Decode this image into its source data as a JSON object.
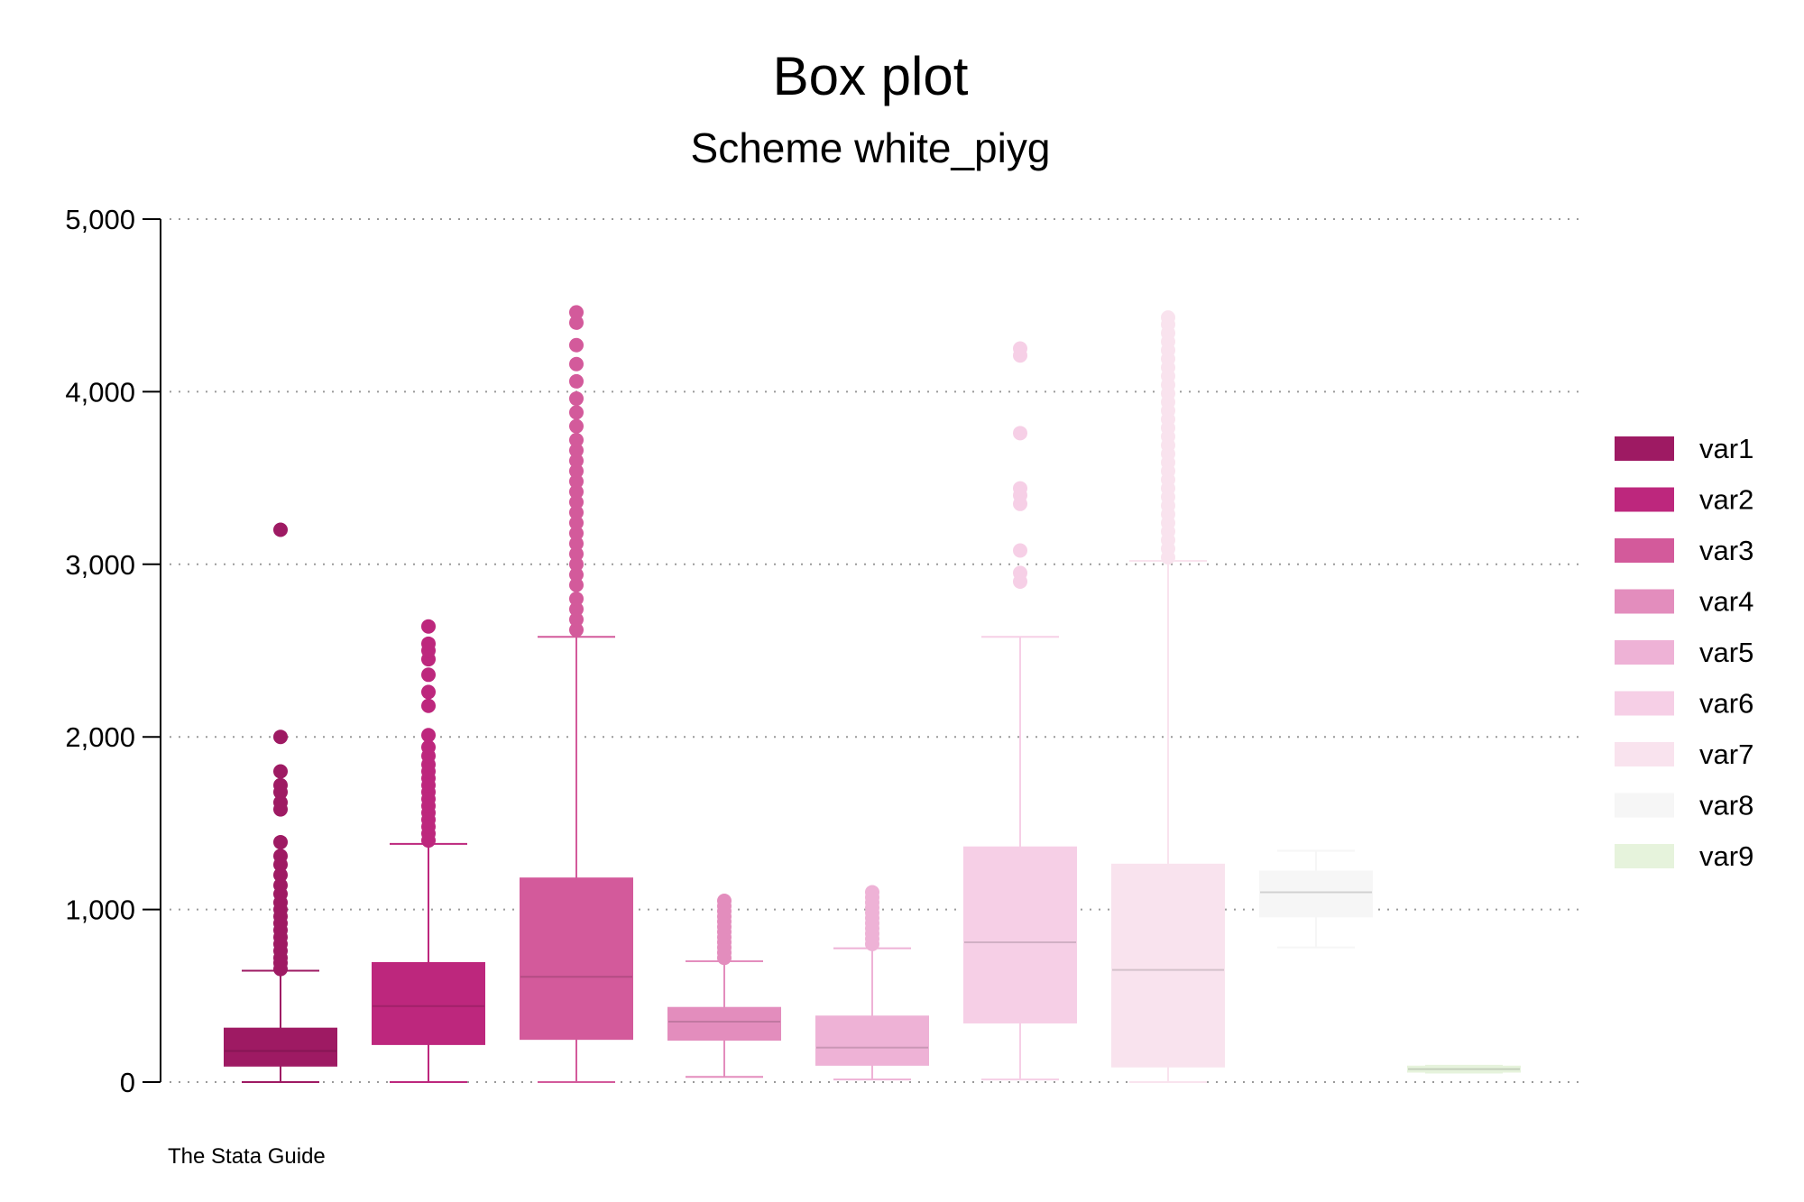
{
  "chart_data": {
    "type": "box",
    "title": "Box plot",
    "subtitle": "Scheme white_piyg",
    "note": "The Stata Guide",
    "xlabel": "",
    "ylabel": "",
    "ylim": [
      0,
      5000
    ],
    "yticks": [
      0,
      1000,
      2000,
      3000,
      4000,
      5000
    ],
    "ytick_labels": [
      "0",
      "1,000",
      "2,000",
      "3,000",
      "4,000",
      "5,000"
    ],
    "grid": true,
    "legend_position": "right",
    "series": [
      {
        "name": "var1",
        "color": "#9e1a63",
        "q1": 95,
        "median": 180,
        "q3": 310,
        "whisker_low": 0,
        "whisker_high": 645,
        "outliers": [
          655,
          690,
          720,
          760,
          800,
          840,
          880,
          920,
          960,
          1000,
          1040,
          1090,
          1140,
          1200,
          1260,
          1310,
          1390,
          1580,
          1620,
          1680,
          1720,
          1800,
          2000,
          3200
        ]
      },
      {
        "name": "var2",
        "color": "#bd277d",
        "q1": 220,
        "median": 440,
        "q3": 690,
        "whisker_low": 0,
        "whisker_high": 1380,
        "outliers": [
          1400,
          1440,
          1480,
          1520,
          1560,
          1600,
          1640,
          1680,
          1720,
          1760,
          1800,
          1840,
          1890,
          1940,
          2010,
          2180,
          2260,
          2360,
          2450,
          2500,
          2540,
          2640
        ]
      },
      {
        "name": "var3",
        "color": "#d35a9b",
        "q1": 250,
        "median": 610,
        "q3": 1180,
        "whisker_low": 0,
        "whisker_high": 2580,
        "outliers": [
          2620,
          2680,
          2740,
          2800,
          2880,
          2940,
          3000,
          3060,
          3120,
          3180,
          3240,
          3300,
          3360,
          3420,
          3480,
          3540,
          3600,
          3660,
          3720,
          3800,
          3880,
          3960,
          4060,
          4160,
          4270,
          4400,
          4460
        ]
      },
      {
        "name": "var4",
        "color": "#e38dbd",
        "q1": 245,
        "median": 350,
        "q3": 430,
        "whisker_low": 30,
        "whisker_high": 700,
        "outliers": [
          720,
          750,
          780,
          810,
          840,
          870,
          900,
          930,
          960,
          990,
          1020,
          1050
        ]
      },
      {
        "name": "var5",
        "color": "#eeb2d6",
        "q1": 100,
        "median": 200,
        "q3": 380,
        "whisker_low": 15,
        "whisker_high": 775,
        "outliers": [
          800,
          830,
          860,
          890,
          920,
          950,
          980,
          1010,
          1040,
          1070,
          1100
        ]
      },
      {
        "name": "var6",
        "color": "#f6cfe6",
        "q1": 345,
        "median": 810,
        "q3": 1360,
        "whisker_low": 15,
        "whisker_high": 2580,
        "outliers": [
          2900,
          2950,
          3080,
          3350,
          3400,
          3440,
          3760,
          4210,
          4250
        ]
      },
      {
        "name": "var7",
        "color": "#f9e3ee",
        "q1": 90,
        "median": 650,
        "q3": 1260,
        "whisker_low": 0,
        "whisker_high": 3020,
        "outliers": [
          3040,
          3090,
          3140,
          3190,
          3240,
          3290,
          3340,
          3390,
          3440,
          3490,
          3540,
          3590,
          3640,
          3690,
          3740,
          3790,
          3840,
          3890,
          3940,
          3990,
          4040,
          4090,
          4140,
          4190,
          4240,
          4290,
          4340,
          4390,
          4430
        ]
      },
      {
        "name": "var8",
        "color": "#f6f6f6",
        "q1": 960,
        "median": 1100,
        "q3": 1220,
        "whisker_low": 780,
        "whisker_high": 1340,
        "outliers": []
      },
      {
        "name": "var9",
        "color": "#e6f3dc",
        "q1": 60,
        "median": 75,
        "q3": 90,
        "whisker_low": 55,
        "whisker_high": 95,
        "outliers": []
      }
    ]
  }
}
